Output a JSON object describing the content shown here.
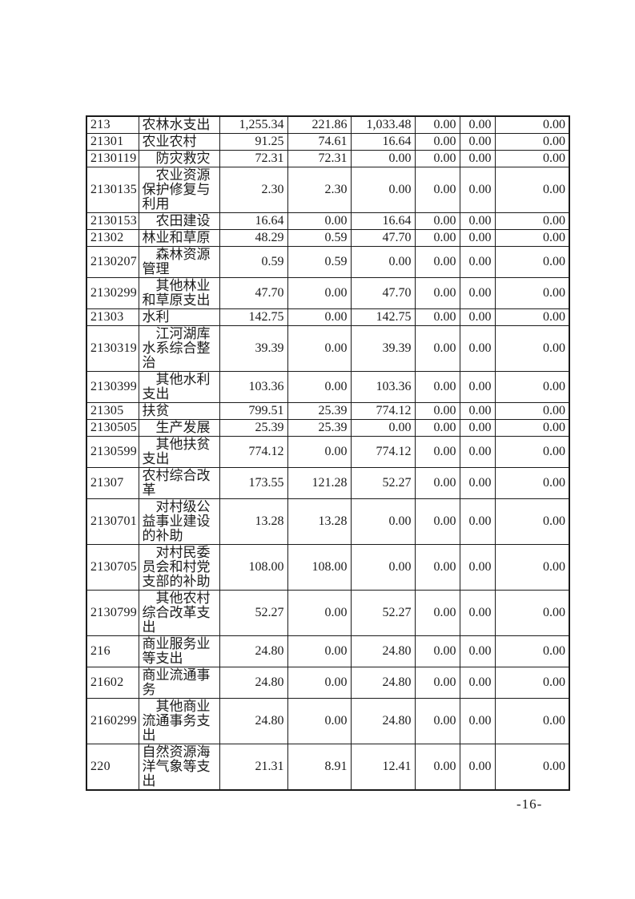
{
  "page": {
    "number_label": "-16-"
  },
  "table": {
    "rows": [
      {
        "code": "213",
        "name": "农林水支出",
        "indent": false,
        "values": [
          "1,255.34",
          "221.86",
          "1,033.48",
          "0.00",
          "0.00",
          "0.00"
        ]
      },
      {
        "code": "21301",
        "name": "农业农村",
        "indent": false,
        "values": [
          "91.25",
          "74.61",
          "16.64",
          "0.00",
          "0.00",
          "0.00"
        ]
      },
      {
        "code": "2130119",
        "name": "防灾救灾",
        "indent": true,
        "values": [
          "72.31",
          "72.31",
          "0.00",
          "0.00",
          "0.00",
          "0.00"
        ]
      },
      {
        "code": "2130135",
        "name": "农业资源保护修复与利用",
        "indent": true,
        "values": [
          "2.30",
          "2.30",
          "0.00",
          "0.00",
          "0.00",
          "0.00"
        ]
      },
      {
        "code": "2130153",
        "name": "农田建设",
        "indent": true,
        "values": [
          "16.64",
          "0.00",
          "16.64",
          "0.00",
          "0.00",
          "0.00"
        ]
      },
      {
        "code": "21302",
        "name": "林业和草原",
        "indent": false,
        "values": [
          "48.29",
          "0.59",
          "47.70",
          "0.00",
          "0.00",
          "0.00"
        ]
      },
      {
        "code": "2130207",
        "name": "森林资源管理",
        "indent": true,
        "values": [
          "0.59",
          "0.59",
          "0.00",
          "0.00",
          "0.00",
          "0.00"
        ]
      },
      {
        "code": "2130299",
        "name": "其他林业和草原支出",
        "indent": true,
        "values": [
          "47.70",
          "0.00",
          "47.70",
          "0.00",
          "0.00",
          "0.00"
        ]
      },
      {
        "code": "21303",
        "name": "水利",
        "indent": false,
        "values": [
          "142.75",
          "0.00",
          "142.75",
          "0.00",
          "0.00",
          "0.00"
        ]
      },
      {
        "code": "2130319",
        "name": "江河湖库水系综合整治",
        "indent": true,
        "values": [
          "39.39",
          "0.00",
          "39.39",
          "0.00",
          "0.00",
          "0.00"
        ]
      },
      {
        "code": "2130399",
        "name": "其他水利支出",
        "indent": true,
        "values": [
          "103.36",
          "0.00",
          "103.36",
          "0.00",
          "0.00",
          "0.00"
        ]
      },
      {
        "code": "21305",
        "name": "扶贫",
        "indent": false,
        "values": [
          "799.51",
          "25.39",
          "774.12",
          "0.00",
          "0.00",
          "0.00"
        ]
      },
      {
        "code": "2130505",
        "name": "生产发展",
        "indent": true,
        "values": [
          "25.39",
          "25.39",
          "0.00",
          "0.00",
          "0.00",
          "0.00"
        ]
      },
      {
        "code": "2130599",
        "name": "其他扶贫支出",
        "indent": true,
        "values": [
          "774.12",
          "0.00",
          "774.12",
          "0.00",
          "0.00",
          "0.00"
        ]
      },
      {
        "code": "21307",
        "name": "农村综合改革",
        "indent": false,
        "values": [
          "173.55",
          "121.28",
          "52.27",
          "0.00",
          "0.00",
          "0.00"
        ]
      },
      {
        "code": "2130701",
        "name": "对村级公益事业建设的补助",
        "indent": true,
        "values": [
          "13.28",
          "13.28",
          "0.00",
          "0.00",
          "0.00",
          "0.00"
        ]
      },
      {
        "code": "2130705",
        "name": "对村民委员会和村党支部的补助",
        "indent": true,
        "values": [
          "108.00",
          "108.00",
          "0.00",
          "0.00",
          "0.00",
          "0.00"
        ]
      },
      {
        "code": "2130799",
        "name": "其他农村综合改革支出",
        "indent": true,
        "values": [
          "52.27",
          "0.00",
          "52.27",
          "0.00",
          "0.00",
          "0.00"
        ]
      },
      {
        "code": "216",
        "name": "商业服务业等支出",
        "indent": false,
        "values": [
          "24.80",
          "0.00",
          "24.80",
          "0.00",
          "0.00",
          "0.00"
        ]
      },
      {
        "code": "21602",
        "name": "商业流通事务",
        "indent": false,
        "values": [
          "24.80",
          "0.00",
          "24.80",
          "0.00",
          "0.00",
          "0.00"
        ]
      },
      {
        "code": "2160299",
        "name": "其他商业流通事务支出",
        "indent": true,
        "values": [
          "24.80",
          "0.00",
          "24.80",
          "0.00",
          "0.00",
          "0.00"
        ]
      },
      {
        "code": "220",
        "name": "自然资源海洋气象等支出",
        "indent": false,
        "values": [
          "21.31",
          "8.91",
          "12.41",
          "0.00",
          "0.00",
          "0.00"
        ]
      }
    ]
  }
}
